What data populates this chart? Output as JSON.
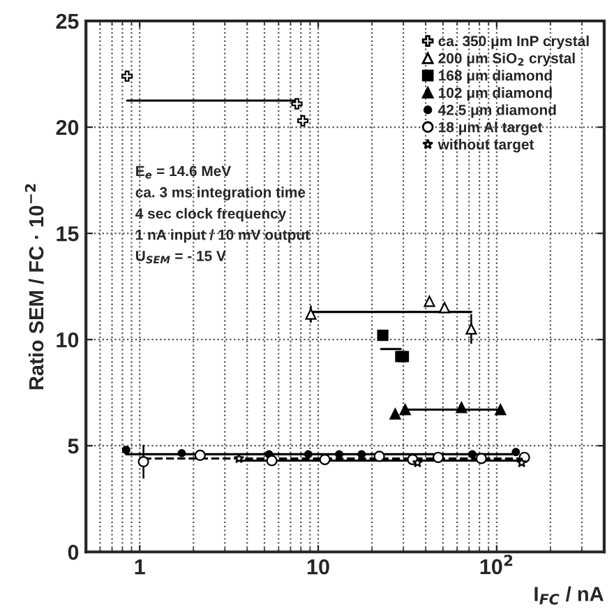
{
  "chart_data": {
    "type": "scatter",
    "xlabel": "I$_{FC}$ / nA",
    "ylabel": "Ratio SEM / FC · 10$^{−2}$",
    "log": "x",
    "xlim": [
      0.5,
      400
    ],
    "ylim": [
      0,
      25
    ],
    "xticks": [
      1,
      10,
      {
        "value": 100,
        "label": "10$^{2}$"
      }
    ],
    "yticks": [
      0,
      5,
      10,
      15,
      20,
      25
    ],
    "grid": true,
    "legend": "top right",
    "annotations": [
      "E$_{e}$ = 14.6 MeV",
      "ca. 3 ms integration time",
      "4 sec clock frequency",
      "1 nA input / 10 mV output",
      "U$_{SEM}$ = - 15 V"
    ],
    "series": [
      {
        "name": "ca. 350 μm InP crystal",
        "marker": "cross",
        "color": "#ffffff",
        "x": [
          0.85,
          7.6,
          8.2
        ],
        "values": [
          22.4,
          21.1,
          20.3
        ]
      },
      {
        "name": "200 μm SiO$_{2}$ crystal",
        "marker": "triangle",
        "color": "#ffffff",
        "x": [
          9.1,
          42,
          51,
          72
        ],
        "values": [
          11.2,
          11.8,
          11.5,
          10.5
        ],
        "errors": [
          0.4,
          null,
          null,
          0.7
        ]
      },
      {
        "name": "168 μm diamond",
        "marker": "square",
        "color": "#000000",
        "x": [
          23,
          29,
          30
        ],
        "values": [
          10.2,
          9.2,
          9.2
        ]
      },
      {
        "name": "102 μm diamond",
        "marker": "triangle",
        "color": "#000000",
        "x": [
          27,
          30.7,
          63.5,
          105
        ],
        "values": [
          6.5,
          6.7,
          6.8,
          6.7
        ]
      },
      {
        "name": "42.5 μm diamond",
        "marker": "circle",
        "color": "#000000",
        "x": [
          0.84,
          1.72,
          5.3,
          8.8,
          13.1,
          17.5,
          73,
          128
        ],
        "values": [
          4.8,
          4.65,
          4.6,
          4.6,
          4.6,
          4.6,
          4.6,
          4.7
        ]
      },
      {
        "name": "18 μm Al target",
        "marker": "circle",
        "color": "#ffffff",
        "x": [
          1.05,
          2.18,
          5.5,
          10.9,
          22,
          33.8,
          47,
          82,
          143
        ],
        "values": [
          4.25,
          4.55,
          4.3,
          4.35,
          4.5,
          4.35,
          4.45,
          4.4,
          4.45
        ],
        "errors": [
          0.8,
          null,
          null,
          null,
          null,
          null,
          null,
          null,
          null
        ]
      },
      {
        "name": "without target",
        "marker": "star",
        "color": "#ffffff",
        "x": [
          3.6,
          36,
          138
        ],
        "values": [
          4.4,
          4.2,
          4.2
        ]
      },
      {
        "type": "line",
        "marker": "none",
        "line_style": "solid",
        "color": "#000000",
        "x": [
          0.85,
          7.6
        ],
        "values": [
          21.25,
          21.25
        ]
      },
      {
        "type": "line",
        "marker": "none",
        "line_style": "solid",
        "color": "#000000",
        "x": [
          9.1,
          72
        ],
        "values": [
          11.3,
          11.3
        ]
      },
      {
        "type": "line",
        "marker": "none",
        "line_style": "solid",
        "color": "#000000",
        "x": [
          22.5,
          29
        ],
        "values": [
          9.55,
          9.55
        ]
      },
      {
        "type": "line",
        "marker": "none",
        "line_style": "solid",
        "color": "#000000",
        "x": [
          30.7,
          105
        ],
        "values": [
          6.7,
          6.7
        ]
      },
      {
        "type": "line",
        "marker": "none",
        "line_style": "solid",
        "color": "#000000",
        "x": [
          0.84,
          128
        ],
        "values": [
          4.6,
          4.6
        ]
      },
      {
        "type": "line",
        "marker": "none",
        "line_style": "dashed",
        "color": "#000000",
        "x": [
          1.05,
          143
        ],
        "values": [
          4.4,
          4.4
        ]
      },
      {
        "type": "line",
        "marker": "none",
        "line_style": "solid",
        "color": "#000000",
        "x": [
          3.6,
          138
        ],
        "values": [
          4.3,
          4.3
        ]
      }
    ]
  }
}
